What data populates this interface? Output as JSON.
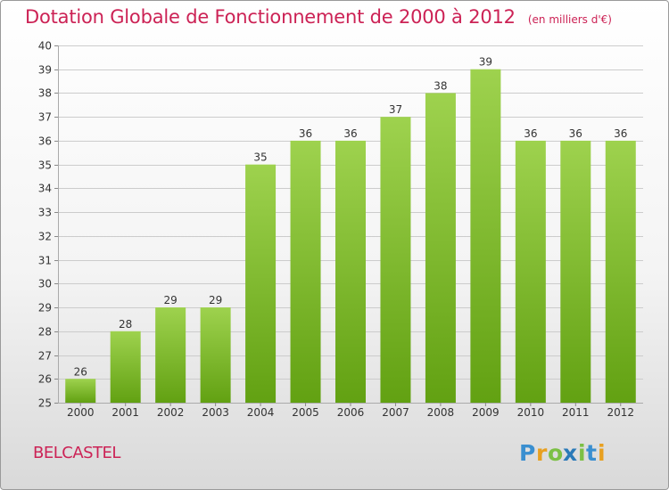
{
  "title": "Dotation Globale de Fonctionnement de 2000 à 2012",
  "unit": "(en milliers d'€)",
  "commune": "BELCASTEL",
  "logo_text": "Proxiti",
  "colors": {
    "bar_top": "#9ed24e",
    "bar_bottom": "#62a112",
    "title": "#cc2255",
    "grid": "#cccccc"
  },
  "chart_data": {
    "type": "bar",
    "title": "Dotation Globale de Fonctionnement de 2000 à 2012",
    "unit": "(en milliers d'€)",
    "categories": [
      "2000",
      "2001",
      "2002",
      "2003",
      "2004",
      "2005",
      "2006",
      "2007",
      "2008",
      "2009",
      "2010",
      "2011",
      "2012"
    ],
    "values": [
      26,
      28,
      29,
      29,
      35,
      36,
      36,
      37,
      38,
      39,
      36,
      36,
      36
    ],
    "ylim": [
      25,
      40
    ],
    "yticks": [
      25,
      26,
      27,
      28,
      29,
      30,
      31,
      32,
      33,
      34,
      35,
      36,
      37,
      38,
      39,
      40
    ],
    "grid": true,
    "data_labels": true
  }
}
